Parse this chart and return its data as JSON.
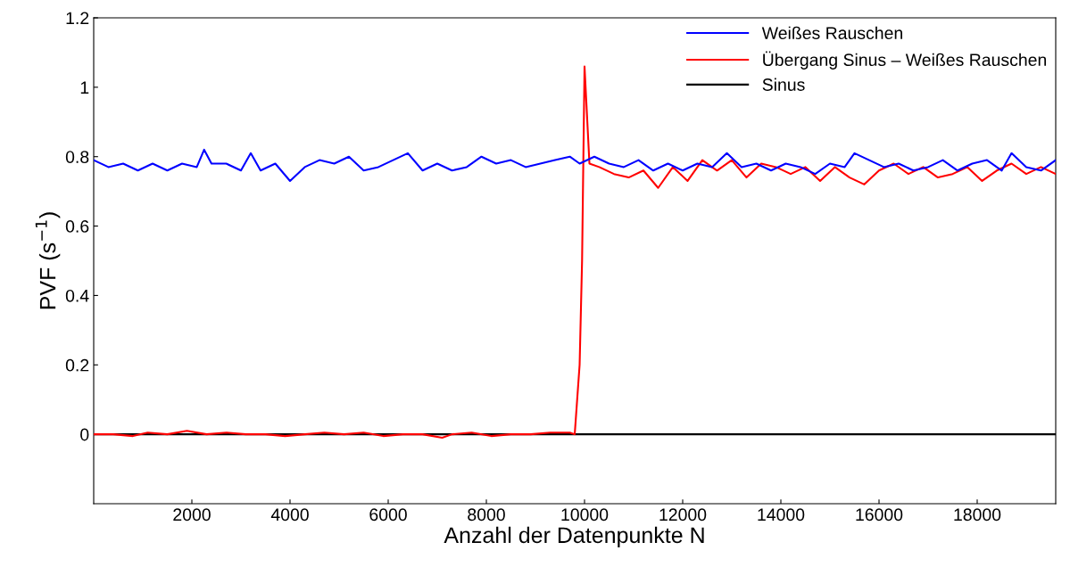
{
  "chart_data": {
    "type": "line",
    "xlabel": "Anzahl der Datenpunkte N",
    "ylabel": "PVF (s$^{−1}$)",
    "xlim": [
      0,
      19600
    ],
    "ylim": [
      -0.2,
      1.2
    ],
    "xticks": [
      2000,
      4000,
      6000,
      8000,
      10000,
      12000,
      14000,
      16000,
      18000
    ],
    "yticks": [
      0,
      0.2,
      0.4,
      0.6,
      0.8,
      1,
      1.2
    ],
    "grid": false,
    "legend": "top right",
    "line_style": "solid",
    "marker": "none",
    "series": [
      {
        "name": "Weißes Rauschen",
        "color": "#0000ff",
        "x": [
          0,
          300,
          600,
          900,
          1200,
          1500,
          1800,
          2100,
          2250,
          2400,
          2700,
          3000,
          3200,
          3400,
          3700,
          4000,
          4300,
          4600,
          4900,
          5200,
          5500,
          5800,
          6100,
          6400,
          6700,
          7000,
          7300,
          7600,
          7900,
          8200,
          8500,
          8800,
          9100,
          9400,
          9700,
          9900,
          10200,
          10500,
          10800,
          11100,
          11400,
          11700,
          12000,
          12300,
          12600,
          12900,
          13200,
          13500,
          13800,
          14100,
          14400,
          14700,
          15000,
          15300,
          15500,
          15800,
          16100,
          16400,
          16700,
          17000,
          17300,
          17600,
          17900,
          18200,
          18500,
          18700,
          19000,
          19300,
          19600
        ],
        "values": [
          0.79,
          0.77,
          0.78,
          0.76,
          0.78,
          0.76,
          0.78,
          0.77,
          0.82,
          0.78,
          0.78,
          0.76,
          0.81,
          0.76,
          0.78,
          0.73,
          0.77,
          0.79,
          0.78,
          0.8,
          0.76,
          0.77,
          0.79,
          0.81,
          0.76,
          0.78,
          0.76,
          0.77,
          0.8,
          0.78,
          0.79,
          0.77,
          0.78,
          0.79,
          0.8,
          0.78,
          0.8,
          0.78,
          0.77,
          0.79,
          0.76,
          0.78,
          0.76,
          0.78,
          0.77,
          0.81,
          0.77,
          0.78,
          0.76,
          0.78,
          0.77,
          0.75,
          0.78,
          0.77,
          0.81,
          0.79,
          0.77,
          0.78,
          0.76,
          0.77,
          0.79,
          0.76,
          0.78,
          0.79,
          0.76,
          0.81,
          0.77,
          0.76,
          0.79
        ]
      },
      {
        "name": "Übergang Sinus – Weißes Rauschen",
        "color": "#ff0000",
        "x": [
          0,
          400,
          800,
          1100,
          1500,
          1900,
          2300,
          2700,
          3100,
          3500,
          3900,
          4300,
          4700,
          5100,
          5500,
          5900,
          6300,
          6700,
          7100,
          7300,
          7700,
          8100,
          8500,
          8900,
          9300,
          9700,
          9800,
          9850,
          9900,
          9950,
          10000,
          10100,
          10300,
          10600,
          10900,
          11200,
          11500,
          11800,
          12100,
          12400,
          12700,
          13000,
          13300,
          13600,
          13900,
          14200,
          14500,
          14800,
          15100,
          15400,
          15700,
          16000,
          16300,
          16600,
          16900,
          17200,
          17500,
          17800,
          18100,
          18400,
          18700,
          19000,
          19300,
          19600
        ],
        "values": [
          0.0,
          0.0,
          -0.005,
          0.005,
          0.0,
          0.01,
          0.0,
          0.005,
          0.0,
          0.0,
          -0.005,
          0.0,
          0.005,
          0.0,
          0.005,
          -0.005,
          0.0,
          0.0,
          -0.01,
          0.0,
          0.005,
          -0.005,
          0.0,
          0.0,
          0.005,
          0.005,
          0.0,
          0.1,
          0.2,
          0.5,
          1.06,
          0.78,
          0.77,
          0.75,
          0.74,
          0.76,
          0.71,
          0.77,
          0.73,
          0.79,
          0.76,
          0.79,
          0.74,
          0.78,
          0.77,
          0.75,
          0.77,
          0.73,
          0.77,
          0.74,
          0.72,
          0.76,
          0.78,
          0.75,
          0.77,
          0.74,
          0.75,
          0.77,
          0.73,
          0.76,
          0.78,
          0.75,
          0.77,
          0.75
        ]
      },
      {
        "name": "Sinus",
        "color": "#000000",
        "x": [
          0,
          2000,
          4000,
          6000,
          8000,
          10000,
          12000,
          14000,
          16000,
          18000,
          19600
        ],
        "values": [
          0,
          0,
          0,
          0,
          0,
          0,
          0,
          0,
          0,
          0,
          0
        ]
      }
    ]
  }
}
